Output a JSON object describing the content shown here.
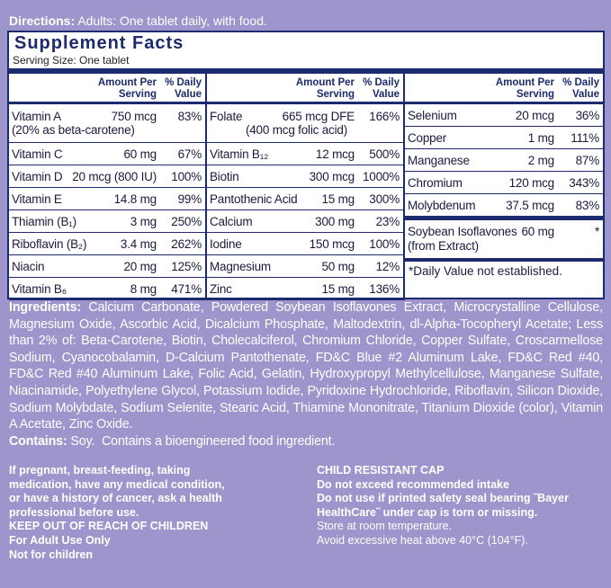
{
  "directions": {
    "label": "Directions:",
    "text": "Adults: One tablet daily, with food."
  },
  "supplement_facts": {
    "title": "Supplement Facts",
    "serving_size": "Serving Size: One tablet",
    "header": {
      "amount": "Amount Per Serving",
      "dv": "% Daily Value"
    },
    "columns": [
      {
        "rows": [
          {
            "name": "Vitamin A",
            "amount": "750 mcg",
            "dv": "83%",
            "note": "(20% as beta-carotene)"
          },
          {
            "name": "Vitamin C",
            "amount": "60 mg",
            "dv": "67%"
          },
          {
            "name": "Vitamin D",
            "amount": "20 mcg (800 IU)",
            "dv": "100%"
          },
          {
            "name": "Vitamin E",
            "amount": "14.8 mg",
            "dv": "99%"
          },
          {
            "name": "Thiamin (B₁)",
            "amount": "3 mg",
            "dv": "250%"
          },
          {
            "name": "Riboflavin (B₂)",
            "amount": "3.4 mg",
            "dv": "262%"
          },
          {
            "name": "Niacin",
            "amount": "20 mg",
            "dv": "125%"
          },
          {
            "name": "Vitamin B₆",
            "amount": "8 mg",
            "dv": "471%"
          }
        ]
      },
      {
        "rows": [
          {
            "name": "Folate",
            "amount": "665 mcg DFE",
            "dv": "166%",
            "note": "(400 mcg folic acid)"
          },
          {
            "name": "Vitamin B₁₂",
            "amount": "12 mcg",
            "dv": "500%"
          },
          {
            "name": "Biotin",
            "amount": "300 mcg",
            "dv": "1000%"
          },
          {
            "name": "Pantothenic Acid",
            "amount": "15 mg",
            "dv": "300%"
          },
          {
            "name": "Calcium",
            "amount": "300 mg",
            "dv": "23%"
          },
          {
            "name": "Iodine",
            "amount": "150 mcg",
            "dv": "100%"
          },
          {
            "name": "Magnesium",
            "amount": "50 mg",
            "dv": "12%"
          },
          {
            "name": "Zinc",
            "amount": "15 mg",
            "dv": "136%"
          }
        ]
      },
      {
        "rows": [
          {
            "name": "Selenium",
            "amount": "20 mcg",
            "dv": "36%"
          },
          {
            "name": "Copper",
            "amount": "1 mg",
            "dv": "111%"
          },
          {
            "name": "Manganese",
            "amount": "2 mg",
            "dv": "87%"
          },
          {
            "name": "Chromium",
            "amount": "120 mcg",
            "dv": "343%"
          },
          {
            "name": "Molybdenum",
            "amount": "37.5 mcg",
            "dv": "83%"
          }
        ]
      }
    ],
    "other": {
      "name": "Soybean Isoflavones (from Extract)",
      "amount": "60 mg",
      "dv": "*"
    },
    "footnote": "*Daily Value not established."
  },
  "ingredients": {
    "label": "Ingredients:",
    "text": "Calcium Carbonate, Powdered Soybean Isoflavones Extract, Microcrystalline Cellulose, Magnesium Oxide, Ascorbic Acid, Dicalcium Phosphate, Maltodextrin, dl-Alpha-Tocopheryl Acetate; Less than 2% of: Beta-Carotene, Biotin, Cholecalciferol, Chromium Chloride, Copper Sulfate, Croscarmellose Sodium, Cyanocobalamin, D-Calcium Pantothenate, FD&C Blue #2 Aluminum Lake, FD&C Red #40, FD&C Red #40 Aluminum Lake, Folic Acid, Gelatin, Hydroxypropyl Methylcellulose, Manganese Sulfate, Niacinamide, Polyethylene Glycol, Potassium Iodide, Pyridoxine Hydrochloride, Riboflavin, Silicon Dioxide, Sodium Molybdate, Sodium Selenite, Stearic Acid, Thiamine Mononitrate, Titanium Dioxide (color), Vitamin A Acetate, Zinc Oxide."
  },
  "contains": {
    "label": "Contains:",
    "text": "Soy.  Contains a bioengineered food ingredient."
  },
  "warnings": {
    "left": [
      "If pregnant, breast-feeding, taking medication, have any medical condition, or have a history of cancer, ask a health professional before use.",
      "KEEP OUT OF REACH OF CHILDREN",
      "For Adult Use Only",
      "Not for children"
    ],
    "right_bold": [
      "CHILD RESISTANT CAP",
      "Do not exceed recommended intake",
      "Do not use if printed safety seal bearing ˜Bayer HealthCare˜ under cap is torn or missing."
    ],
    "right": [
      "Store at room temperature.",
      "Avoid excessive heat above 40°C (104°F)."
    ]
  }
}
